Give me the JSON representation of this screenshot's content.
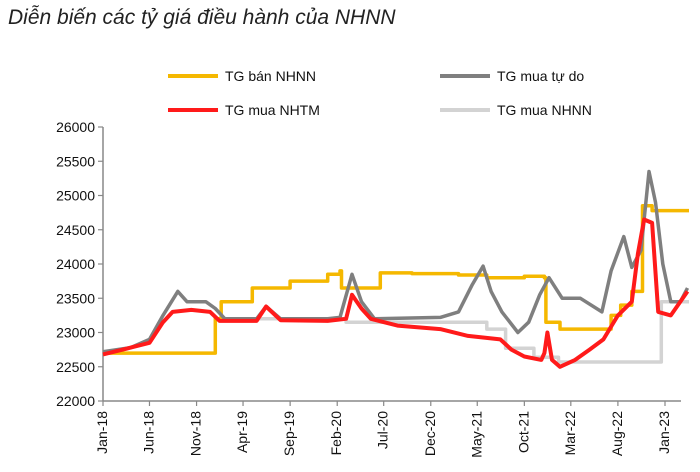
{
  "chart_data": {
    "type": "line",
    "title": "Diễn biến các tỷ giá điều hành của NHNN",
    "xlabel": "",
    "ylabel": "",
    "ylim": [
      22000,
      26000
    ],
    "yticks": [
      22000,
      22500,
      23000,
      23500,
      24000,
      24500,
      25000,
      25500,
      26000
    ],
    "xlim": [
      "2018-01-01",
      "2023-03-20"
    ],
    "xticks": [
      {
        "date": "2018-01-01",
        "label": "Jan-18"
      },
      {
        "date": "2018-06-01",
        "label": "Jun-18"
      },
      {
        "date": "2018-11-01",
        "label": "Nov-18"
      },
      {
        "date": "2019-04-01",
        "label": "Apr-19"
      },
      {
        "date": "2019-09-01",
        "label": "Sep-19"
      },
      {
        "date": "2020-02-01",
        "label": "Feb-20"
      },
      {
        "date": "2020-07-01",
        "label": "Jul-20"
      },
      {
        "date": "2020-12-01",
        "label": "Dec-20"
      },
      {
        "date": "2021-05-01",
        "label": "May-21"
      },
      {
        "date": "2021-10-01",
        "label": "Oct-21"
      },
      {
        "date": "2022-03-01",
        "label": "Mar-22"
      },
      {
        "date": "2022-08-01",
        "label": "Aug-22"
      },
      {
        "date": "2023-01-01",
        "label": "Jan-23"
      }
    ],
    "grid": false,
    "legend_position": "top",
    "series": [
      {
        "name": "TG bán NHNN",
        "color": "#F5B800",
        "step": true,
        "points": [
          [
            "2018-01-01",
            22700
          ],
          [
            "2019-01-01",
            23200
          ],
          [
            "2019-01-20",
            23450
          ],
          [
            "2019-05-01",
            23650
          ],
          [
            "2019-09-01",
            23750
          ],
          [
            "2020-01-01",
            23850
          ],
          [
            "2020-02-10",
            23900
          ],
          [
            "2020-02-15",
            23650
          ],
          [
            "2020-06-20",
            23870
          ],
          [
            "2020-10-01",
            23860
          ],
          [
            "2021-03-01",
            23840
          ],
          [
            "2021-06-01",
            23800
          ],
          [
            "2021-10-01",
            23820
          ],
          [
            "2021-12-05",
            23800
          ],
          [
            "2021-12-10",
            23150
          ],
          [
            "2022-01-25",
            23050
          ],
          [
            "2022-07-10",
            23250
          ],
          [
            "2022-08-10",
            23400
          ],
          [
            "2022-09-15",
            23600
          ],
          [
            "2022-10-20",
            24850
          ],
          [
            "2022-11-20",
            24780
          ],
          [
            "2023-03-20",
            24780
          ]
        ]
      },
      {
        "name": "TG mua tự do",
        "color": "#7F7F7F",
        "step": false,
        "points": [
          [
            "2018-01-01",
            22720
          ],
          [
            "2018-04-01",
            22780
          ],
          [
            "2018-06-01",
            22900
          ],
          [
            "2018-07-15",
            23250
          ],
          [
            "2018-09-01",
            23600
          ],
          [
            "2018-10-01",
            23450
          ],
          [
            "2018-12-01",
            23450
          ],
          [
            "2019-01-01",
            23350
          ],
          [
            "2019-02-01",
            23200
          ],
          [
            "2019-05-15",
            23200
          ],
          [
            "2019-06-15",
            23380
          ],
          [
            "2019-08-01",
            23200
          ],
          [
            "2020-01-01",
            23200
          ],
          [
            "2020-02-10",
            23220
          ],
          [
            "2020-03-20",
            23850
          ],
          [
            "2020-04-20",
            23450
          ],
          [
            "2020-06-01",
            23200
          ],
          [
            "2021-01-01",
            23220
          ],
          [
            "2021-03-01",
            23300
          ],
          [
            "2021-04-15",
            23700
          ],
          [
            "2021-05-20",
            23970
          ],
          [
            "2021-06-15",
            23600
          ],
          [
            "2021-07-20",
            23300
          ],
          [
            "2021-09-10",
            23000
          ],
          [
            "2021-10-15",
            23150
          ],
          [
            "2021-11-20",
            23550
          ],
          [
            "2021-12-20",
            23800
          ],
          [
            "2022-02-01",
            23500
          ],
          [
            "2022-04-01",
            23500
          ],
          [
            "2022-06-10",
            23300
          ],
          [
            "2022-07-10",
            23900
          ],
          [
            "2022-08-20",
            24400
          ],
          [
            "2022-09-15",
            23950
          ],
          [
            "2022-10-15",
            24200
          ],
          [
            "2022-11-10",
            25350
          ],
          [
            "2022-12-01",
            24900
          ],
          [
            "2022-12-25",
            24000
          ],
          [
            "2023-01-20",
            23450
          ],
          [
            "2023-02-20",
            23450
          ],
          [
            "2023-03-15",
            23650
          ]
        ]
      },
      {
        "name": "TG mua NHTM",
        "color": "#FF1A1A",
        "step": false,
        "points": [
          [
            "2018-01-01",
            22680
          ],
          [
            "2018-04-01",
            22780
          ],
          [
            "2018-06-01",
            22850
          ],
          [
            "2018-07-15",
            23150
          ],
          [
            "2018-08-15",
            23300
          ],
          [
            "2018-10-15",
            23330
          ],
          [
            "2018-12-15",
            23300
          ],
          [
            "2019-01-15",
            23170
          ],
          [
            "2019-05-15",
            23170
          ],
          [
            "2019-06-15",
            23380
          ],
          [
            "2019-08-01",
            23180
          ],
          [
            "2020-01-01",
            23170
          ],
          [
            "2020-03-01",
            23200
          ],
          [
            "2020-03-20",
            23550
          ],
          [
            "2020-04-20",
            23350
          ],
          [
            "2020-05-20",
            23200
          ],
          [
            "2020-08-15",
            23100
          ],
          [
            "2021-01-01",
            23050
          ],
          [
            "2021-04-01",
            22950
          ],
          [
            "2021-07-15",
            22900
          ],
          [
            "2021-08-20",
            22750
          ],
          [
            "2021-10-01",
            22650
          ],
          [
            "2021-11-25",
            22600
          ],
          [
            "2021-12-05",
            22700
          ],
          [
            "2021-12-15",
            23000
          ],
          [
            "2021-12-30",
            22600
          ],
          [
            "2022-01-25",
            22500
          ],
          [
            "2022-03-15",
            22600
          ],
          [
            "2022-05-01",
            22750
          ],
          [
            "2022-06-15",
            22900
          ],
          [
            "2022-08-01",
            23250
          ],
          [
            "2022-09-15",
            23450
          ],
          [
            "2022-10-05",
            24150
          ],
          [
            "2022-10-25",
            24650
          ],
          [
            "2022-11-20",
            24600
          ],
          [
            "2022-12-10",
            23300
          ],
          [
            "2023-01-20",
            23250
          ],
          [
            "2023-03-15",
            23600
          ]
        ]
      },
      {
        "name": "TG mua NHNN",
        "color": "#D3D3D3",
        "step": true,
        "points": [
          [
            "2019-01-01",
            23200
          ],
          [
            "2020-03-01",
            23150
          ],
          [
            "2021-06-01",
            23050
          ],
          [
            "2021-08-01",
            22770
          ],
          [
            "2021-11-01",
            22640
          ],
          [
            "2022-01-20",
            22570
          ],
          [
            "2022-12-20",
            23450
          ],
          [
            "2023-03-20",
            23450
          ]
        ]
      }
    ]
  }
}
